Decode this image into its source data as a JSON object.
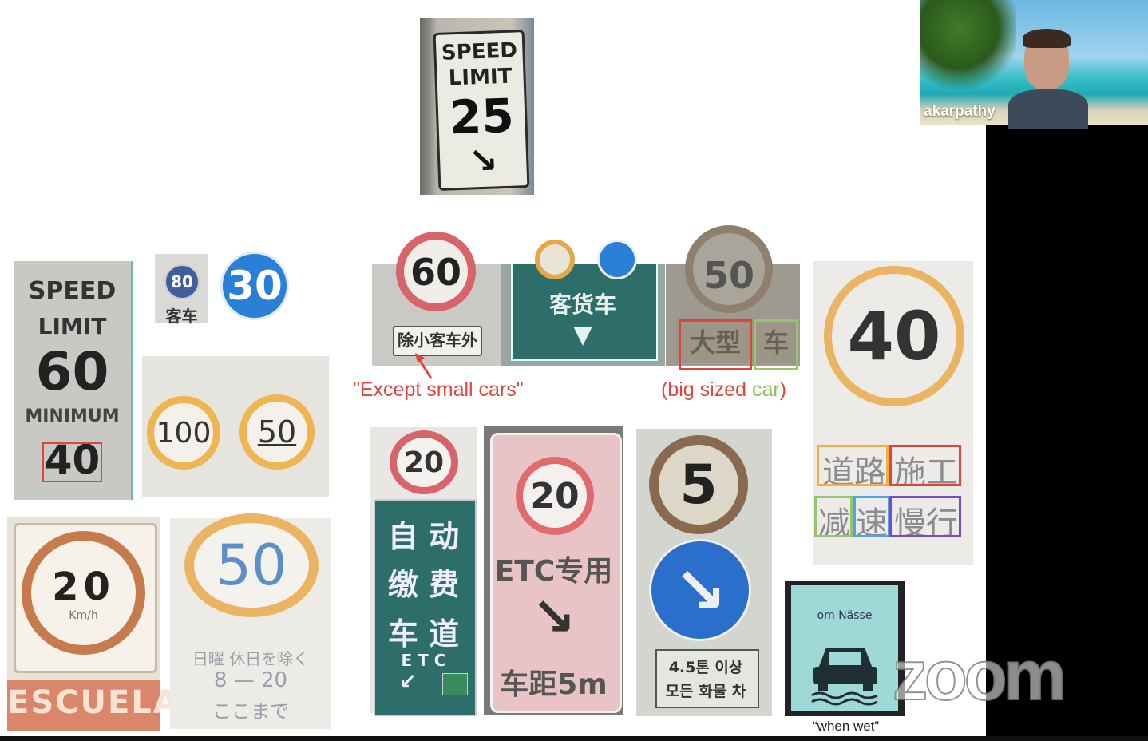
{
  "webcam": {
    "participant_name": "akarpathy"
  },
  "zoom": {
    "logo": "zoom"
  },
  "signs": {
    "top": {
      "line1": "SPEED",
      "line2": "LIMIT",
      "number": "25"
    },
    "min": {
      "line1": "SPEED",
      "line2": "LIMIT",
      "number": "60",
      "line3": "MINIMUM",
      "min_number": "40"
    },
    "small80": {
      "number": "80",
      "label": "客车"
    },
    "blue30": {
      "number": "30"
    },
    "pair": {
      "left": "100",
      "right": "50"
    },
    "escuela": {
      "number": "20",
      "unit": "Km/h",
      "label": "ESCUELA"
    },
    "fifty": {
      "number": "50",
      "line1": "日曜 休日を除く",
      "line2": "8 — 20",
      "line3": "ここまで"
    },
    "except": {
      "number": "60",
      "panel": "除小客车外"
    },
    "truck": {
      "label": "客货车",
      "arrow": "▼"
    },
    "big": {
      "number": "50",
      "char1": "大型",
      "char2": "车"
    },
    "construction": {
      "number": "40",
      "row1a": "道路",
      "row1b": "施工",
      "row2a": "减",
      "row2b": "速",
      "row2c": "慢行"
    },
    "auto": {
      "number": "20",
      "line1": "自 动",
      "line2": "缴 费",
      "line3": "车 道",
      "line4": "E T C"
    },
    "etc": {
      "number": "20",
      "label": "ETC专用",
      "bottom": "车距5m"
    },
    "korean": {
      "number": "5",
      "line1": "4.5톤 이상",
      "line2": "모든 화물 차"
    },
    "wet": {
      "top": "om Nässe"
    }
  },
  "captions": {
    "except_small_cars": "\"Except small cars\"",
    "big_sized_open": "(big sized ",
    "big_sized_car": "car",
    "big_sized_close": ")",
    "when_wet": "“when wet”"
  },
  "colors": {
    "caption_red": "#e0443a",
    "caption_green": "#8fbf5a",
    "box_red": "#e0443a",
    "box_green": "#9ac46b",
    "box_orange": "#f0b040",
    "box_blue": "#4aa8e8",
    "box_purple": "#7b4bc4",
    "sign_teal": "#2e6e6a",
    "sign_blue": "#2a7fd6"
  }
}
